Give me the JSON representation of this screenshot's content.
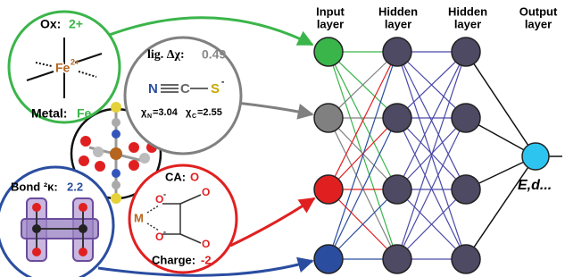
{
  "panels": {
    "oxidation": {
      "label": "Ox:",
      "value": "2+",
      "metal_symbol": "Fe",
      "metal_charge": "2+",
      "metal_label": "Metal:",
      "metal_value": "Fe"
    },
    "electronegativity": {
      "label": "lig. Δχ:",
      "value": "0.49",
      "atoms": [
        "N",
        "C",
        "S"
      ],
      "s_charge": "-",
      "chi_n": {
        "symbol": "χ",
        "sub": "N",
        "value": "=3.04"
      },
      "chi_c": {
        "symbol": "χ",
        "sub": "C",
        "value": "=2.55"
      }
    },
    "bond": {
      "label": "Bond ²κ:",
      "value": "2.2"
    },
    "charge": {
      "ca_label": "CA:",
      "ca_value": "O",
      "metal": "M",
      "o_minus_top": "O",
      "o_minus_bottom": "O",
      "minus": "-",
      "o_top": "O",
      "o_bottom": "O",
      "charge_label": "Charge:",
      "charge_value": "-2"
    }
  },
  "network": {
    "layers": [
      {
        "line1": "Input",
        "line2": "layer"
      },
      {
        "line1": "Hidden",
        "line2": "layer"
      },
      {
        "line1": "Hidden",
        "line2": "layer"
      },
      {
        "line1": "Output",
        "line2": "layer"
      }
    ],
    "output_label": "E,d..."
  }
}
